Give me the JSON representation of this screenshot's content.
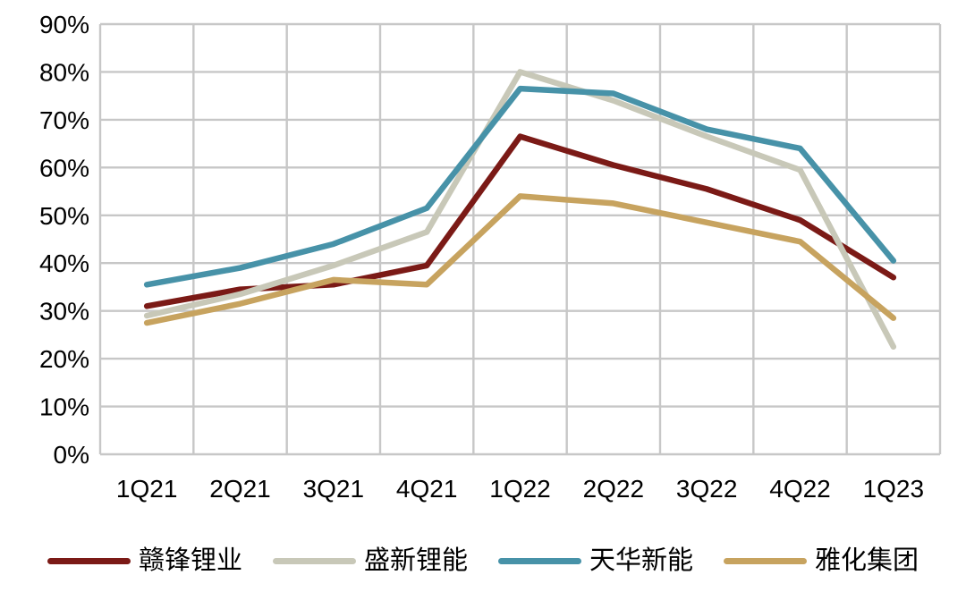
{
  "chart_data": {
    "type": "line",
    "title": "",
    "xlabel": "",
    "ylabel": "",
    "categories": [
      "1Q21",
      "2Q21",
      "3Q21",
      "4Q21",
      "1Q22",
      "2Q22",
      "3Q22",
      "4Q22",
      "1Q23"
    ],
    "series": [
      {
        "name": "赣锋锂业",
        "color": "#7B1A16",
        "values": [
          31,
          34.5,
          35.5,
          39.5,
          66.5,
          60.5,
          55.5,
          49,
          37
        ]
      },
      {
        "name": "盛新锂能",
        "color": "#C8C8B8",
        "values": [
          29,
          33.5,
          39.5,
          46.5,
          80,
          74,
          66.5,
          59.5,
          22.5
        ]
      },
      {
        "name": "天华新能",
        "color": "#4792A8",
        "values": [
          35.5,
          39,
          44,
          51.5,
          76.5,
          75.5,
          68,
          64,
          40.5
        ]
      },
      {
        "name": "雅化集团",
        "color": "#C7A35F",
        "values": [
          27.5,
          31.5,
          36.5,
          35.5,
          54,
          52.5,
          48.5,
          44.5,
          28.5
        ]
      }
    ],
    "ylim": [
      0,
      90
    ],
    "ytick_step": 10,
    "ytick_labels": [
      "0%",
      "10%",
      "20%",
      "30%",
      "40%",
      "50%",
      "60%",
      "70%",
      "80%",
      "90%"
    ],
    "grid": true,
    "gridline_color": "#C7C7C7",
    "axis_text_color": "#000000",
    "legend_position": "bottom"
  }
}
